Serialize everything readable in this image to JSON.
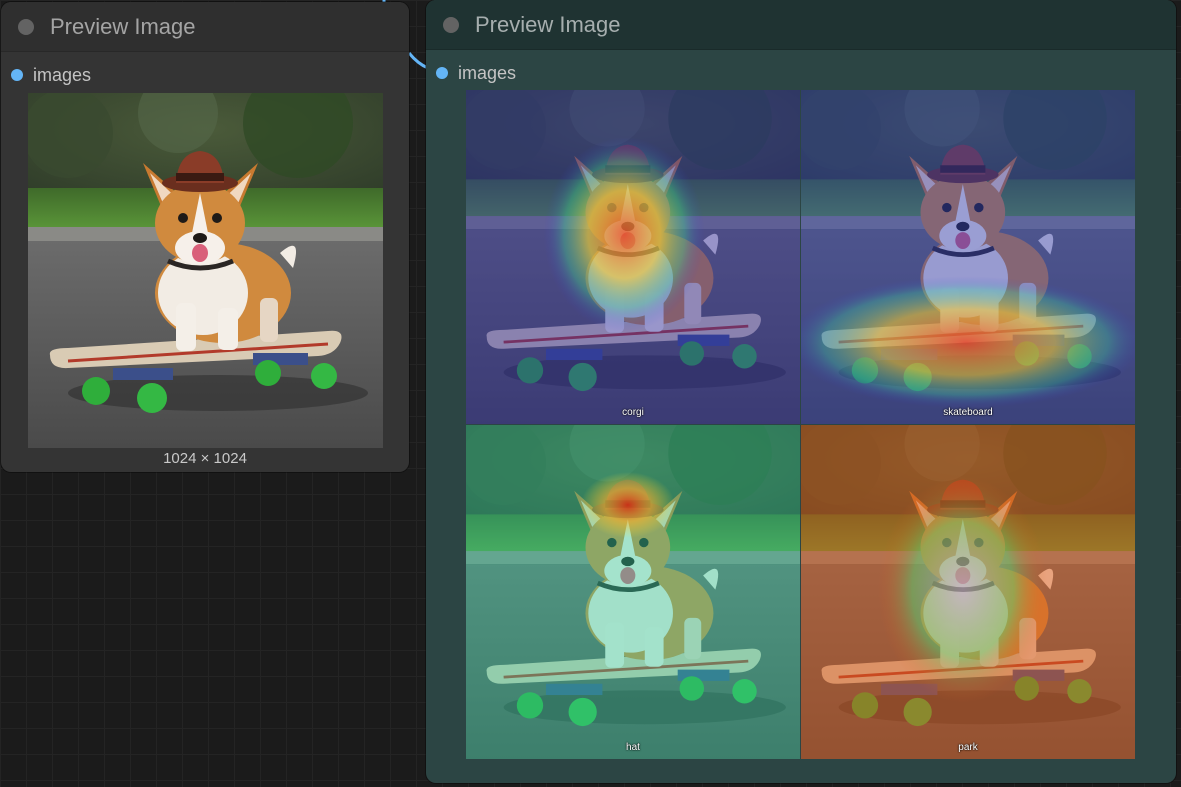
{
  "nodes": {
    "left": {
      "title": "Preview Image",
      "input_slot": "images",
      "caption": "1024 × 1024"
    },
    "right": {
      "title": "Preview Image",
      "input_slot": "images",
      "tiles": [
        {
          "label": "corgi"
        },
        {
          "label": "skateboard"
        },
        {
          "label": "hat"
        },
        {
          "label": "park"
        }
      ]
    }
  },
  "colors": {
    "slot_dot": "#64b5f6",
    "left_node_bg": "#343434",
    "right_node_bg": "#2c4544",
    "right_node_header": "#1f3332"
  },
  "image_content": "corgi-on-skateboard",
  "overlay": "heatmap"
}
